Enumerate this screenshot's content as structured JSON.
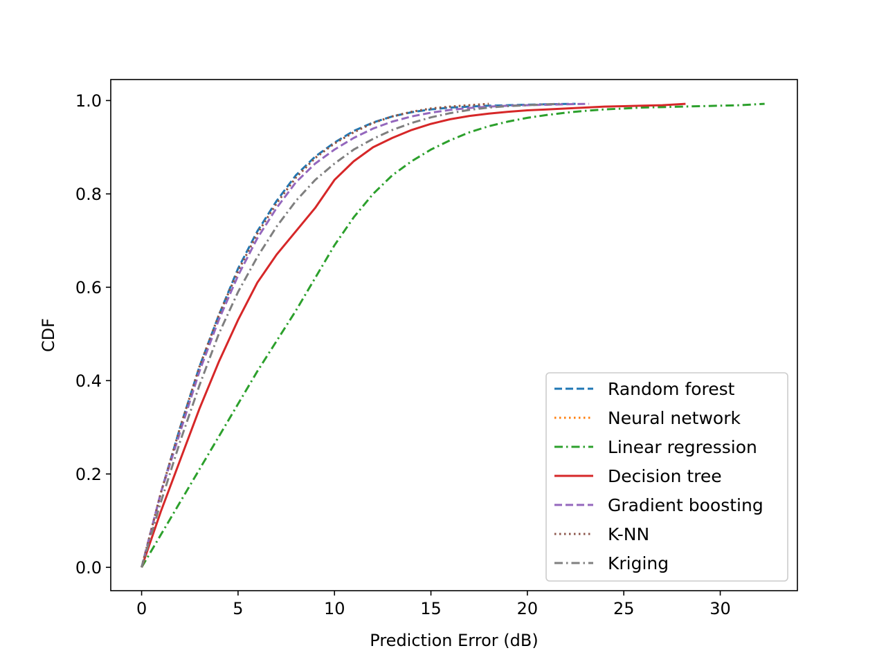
{
  "chart_data": {
    "type": "line",
    "xlabel": "Prediction Error (dB)",
    "ylabel": "CDF",
    "xlim": [
      -1.6,
      34
    ],
    "ylim": [
      -0.05,
      1.045
    ],
    "xticks": [
      0,
      5,
      10,
      15,
      20,
      25,
      30
    ],
    "yticks": [
      0.0,
      0.2,
      0.4,
      0.6,
      0.8,
      1.0
    ],
    "xtick_labels": [
      "0",
      "5",
      "10",
      "15",
      "20",
      "25",
      "30"
    ],
    "ytick_labels": [
      "0.0",
      "0.2",
      "0.4",
      "0.6",
      "0.8",
      "1.0"
    ],
    "grid": false,
    "legend_position": "lower-right",
    "series": [
      {
        "name": "Random forest",
        "color": "#1f77b4",
        "style": "dashed",
        "x": [
          0,
          1,
          2,
          3,
          4,
          5,
          6,
          7,
          8,
          9,
          10,
          11,
          12,
          13,
          14,
          15,
          16,
          17,
          18,
          19,
          20,
          21,
          22.5
        ],
        "y": [
          0.0,
          0.16,
          0.3,
          0.43,
          0.54,
          0.64,
          0.72,
          0.785,
          0.84,
          0.88,
          0.91,
          0.935,
          0.953,
          0.966,
          0.975,
          0.981,
          0.985,
          0.987,
          0.989,
          0.99,
          0.991,
          0.992,
          0.993
        ]
      },
      {
        "name": "Neural network",
        "color": "#ff7f0e",
        "style": "dotted",
        "x": [
          0,
          1,
          2,
          3,
          4,
          5,
          6,
          7,
          8,
          9,
          10,
          11,
          12,
          13,
          14,
          15,
          16,
          17,
          18
        ],
        "y": [
          0.0,
          0.16,
          0.3,
          0.43,
          0.54,
          0.635,
          0.715,
          0.78,
          0.835,
          0.877,
          0.908,
          0.932,
          0.952,
          0.966,
          0.976,
          0.983,
          0.987,
          0.99,
          0.993
        ]
      },
      {
        "name": "Linear regression",
        "color": "#2ca02c",
        "style": "dashdot",
        "x": [
          0,
          1,
          2,
          3,
          4,
          5,
          6,
          7,
          8,
          9,
          10,
          11,
          12,
          13,
          14,
          15,
          16,
          17,
          18,
          19,
          20,
          21,
          22,
          23,
          24,
          25,
          26,
          27,
          28,
          29,
          30,
          31,
          32.3
        ],
        "y": [
          0.0,
          0.07,
          0.14,
          0.21,
          0.28,
          0.35,
          0.42,
          0.485,
          0.55,
          0.62,
          0.69,
          0.75,
          0.8,
          0.84,
          0.87,
          0.895,
          0.915,
          0.932,
          0.945,
          0.955,
          0.963,
          0.969,
          0.974,
          0.978,
          0.981,
          0.983,
          0.985,
          0.986,
          0.987,
          0.988,
          0.989,
          0.99,
          0.993
        ]
      },
      {
        "name": "Decision tree",
        "color": "#d62728",
        "style": "solid",
        "x": [
          0,
          1,
          2,
          3,
          4,
          5,
          6,
          7,
          8,
          9,
          10,
          11,
          12,
          13,
          14,
          15,
          16,
          17,
          18,
          19,
          20,
          21,
          22,
          23,
          24,
          25,
          26,
          27,
          28.2
        ],
        "y": [
          0.0,
          0.12,
          0.23,
          0.34,
          0.44,
          0.53,
          0.61,
          0.67,
          0.72,
          0.77,
          0.83,
          0.87,
          0.9,
          0.92,
          0.937,
          0.95,
          0.96,
          0.967,
          0.972,
          0.976,
          0.979,
          0.981,
          0.983,
          0.985,
          0.987,
          0.988,
          0.989,
          0.99,
          0.993
        ]
      },
      {
        "name": "Gradient boosting",
        "color": "#9467bd",
        "style": "dashed",
        "x": [
          0,
          1,
          2,
          3,
          4,
          5,
          6,
          7,
          8,
          9,
          10,
          11,
          12,
          13,
          14,
          15,
          16,
          17,
          18,
          19,
          20,
          21,
          22,
          23.2
        ],
        "y": [
          0.0,
          0.16,
          0.29,
          0.42,
          0.53,
          0.625,
          0.705,
          0.77,
          0.825,
          0.865,
          0.895,
          0.92,
          0.94,
          0.955,
          0.966,
          0.974,
          0.98,
          0.984,
          0.987,
          0.989,
          0.99,
          0.991,
          0.992,
          0.993
        ]
      },
      {
        "name": "K-NN",
        "color": "#8c564b",
        "style": "dotted",
        "x": [
          0,
          1,
          2,
          3,
          4,
          5,
          6,
          7,
          8,
          9,
          10,
          11,
          12,
          13,
          14,
          15,
          16,
          17,
          18
        ],
        "y": [
          0.0,
          0.16,
          0.3,
          0.43,
          0.54,
          0.635,
          0.715,
          0.78,
          0.835,
          0.877,
          0.908,
          0.932,
          0.952,
          0.966,
          0.976,
          0.983,
          0.987,
          0.99,
          0.993
        ]
      },
      {
        "name": "Kriging",
        "color": "#7f7f7f",
        "style": "dashdot",
        "x": [
          0,
          1,
          2,
          3,
          4,
          5,
          6,
          7,
          8,
          9,
          10,
          11,
          12,
          13,
          14,
          15,
          16,
          17,
          18,
          19,
          20,
          21,
          21.8
        ],
        "y": [
          0.0,
          0.14,
          0.27,
          0.39,
          0.5,
          0.59,
          0.665,
          0.73,
          0.785,
          0.83,
          0.865,
          0.895,
          0.918,
          0.937,
          0.952,
          0.964,
          0.973,
          0.98,
          0.985,
          0.988,
          0.99,
          0.992,
          0.993
        ]
      }
    ]
  }
}
